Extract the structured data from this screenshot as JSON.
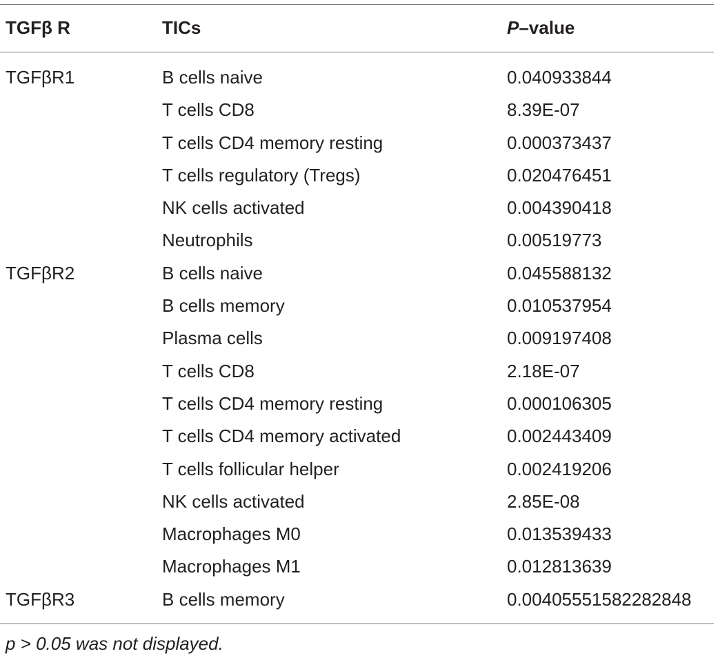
{
  "table": {
    "headers": {
      "receptor": "TGFβ R",
      "tics": "TICs",
      "pvalue_italic": "P",
      "pvalue_rest": "–value"
    },
    "rows": [
      {
        "receptor": "TGFβR1",
        "tic": "B cells naive",
        "pvalue": "0.040933844"
      },
      {
        "receptor": "",
        "tic": "T cells CD8",
        "pvalue": "8.39E-07"
      },
      {
        "receptor": "",
        "tic": "T cells CD4 memory resting",
        "pvalue": "0.000373437"
      },
      {
        "receptor": "",
        "tic": "T cells regulatory (Tregs)",
        "pvalue": "0.020476451"
      },
      {
        "receptor": "",
        "tic": "NK cells activated",
        "pvalue": "0.004390418"
      },
      {
        "receptor": "",
        "tic": "Neutrophils",
        "pvalue": "0.00519773"
      },
      {
        "receptor": "TGFβR2",
        "tic": "B cells naive",
        "pvalue": "0.045588132"
      },
      {
        "receptor": "",
        "tic": "B cells memory",
        "pvalue": "0.010537954"
      },
      {
        "receptor": "",
        "tic": "Plasma cells",
        "pvalue": "0.009197408"
      },
      {
        "receptor": "",
        "tic": "T cells CD8",
        "pvalue": "2.18E-07"
      },
      {
        "receptor": "",
        "tic": "T cells CD4 memory resting",
        "pvalue": "0.000106305"
      },
      {
        "receptor": "",
        "tic": "T cells CD4 memory activated",
        "pvalue": "0.002443409"
      },
      {
        "receptor": "",
        "tic": "T cells follicular helper",
        "pvalue": "0.002419206"
      },
      {
        "receptor": "",
        "tic": "NK cells activated",
        "pvalue": "2.85E-08"
      },
      {
        "receptor": "",
        "tic": "Macrophages M0",
        "pvalue": "0.013539433"
      },
      {
        "receptor": "",
        "tic": "Macrophages M1",
        "pvalue": "0.012813639"
      },
      {
        "receptor": "TGFβR3",
        "tic": "B cells memory",
        "pvalue": "0.00405551582282848"
      }
    ],
    "footnote": "p > 0.05 was not displayed."
  }
}
